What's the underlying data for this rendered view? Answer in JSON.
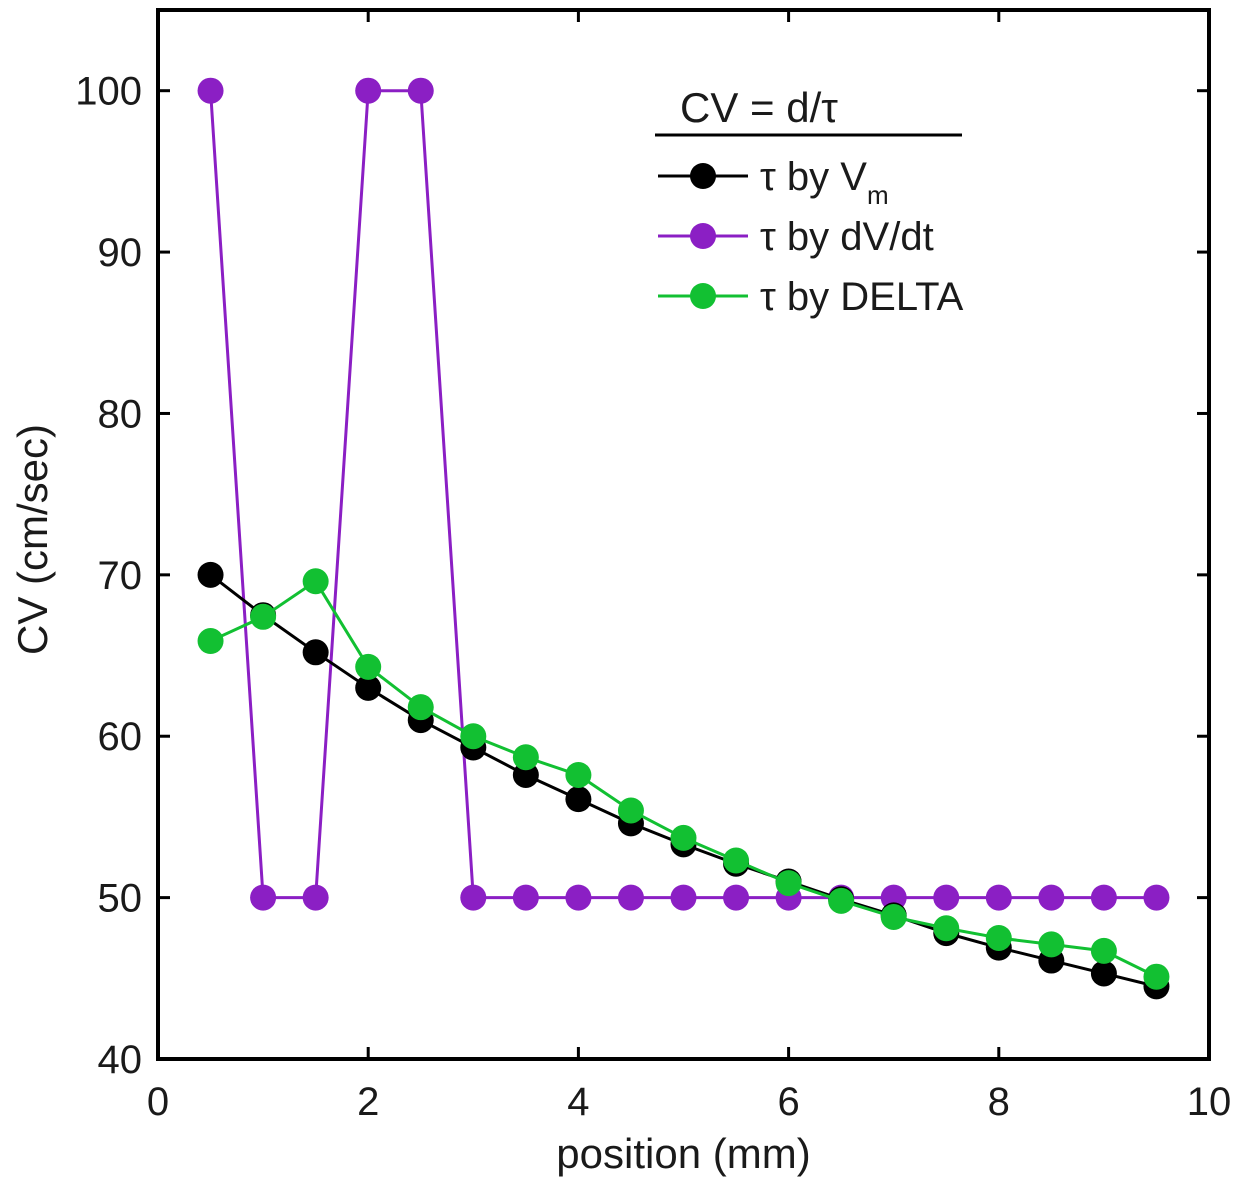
{
  "chart_data": {
    "type": "line",
    "title": "",
    "xlabel": "position (mm)",
    "ylabel": "CV (cm/sec)",
    "xlim": [
      0,
      10
    ],
    "ylim": [
      40,
      105
    ],
    "xticks": [
      0,
      2,
      4,
      6,
      8,
      10
    ],
    "yticks": [
      40,
      50,
      60,
      70,
      80,
      90,
      100
    ],
    "xtick_labels": [
      "0",
      "2",
      "4",
      "6",
      "8",
      "10"
    ],
    "ytick_labels": [
      "40",
      "50",
      "60",
      "70",
      "80",
      "90",
      "100"
    ],
    "grid": false,
    "legend": {
      "title": "CV = d/τ",
      "placement": "top-right",
      "entries": [
        {
          "prefix": "τ by ",
          "main": "V",
          "sub": "m"
        },
        {
          "prefix": "τ by ",
          "main": "dV/dt",
          "sub": ""
        },
        {
          "prefix": "τ by ",
          "main": "DELTA",
          "sub": ""
        }
      ]
    },
    "x": [
      0.5,
      1.0,
      1.5,
      2.0,
      2.5,
      3.0,
      3.5,
      4.0,
      4.5,
      5.0,
      5.5,
      6.0,
      6.5,
      7.0,
      7.5,
      8.0,
      8.5,
      9.0,
      9.5
    ],
    "series": [
      {
        "name": "τ by Vm",
        "color": "#000000",
        "values": [
          70.0,
          67.5,
          65.2,
          63.0,
          61.0,
          59.3,
          57.6,
          56.1,
          54.6,
          53.3,
          52.1,
          51.0,
          49.9,
          48.9,
          47.8,
          46.9,
          46.1,
          45.3,
          44.5
        ]
      },
      {
        "name": "τ by dV/dt",
        "color": "#8b1fc4",
        "values": [
          100.0,
          50.0,
          50.0,
          100.0,
          100.0,
          50.0,
          50.0,
          50.0,
          50.0,
          50.0,
          50.0,
          50.0,
          50.0,
          50.0,
          50.0,
          50.0,
          50.0,
          50.0,
          50.0
        ]
      },
      {
        "name": "τ by DELTA",
        "color": "#12c032",
        "values": [
          65.9,
          67.4,
          69.6,
          64.3,
          61.8,
          60.0,
          58.7,
          57.6,
          55.4,
          53.7,
          52.3,
          50.9,
          49.8,
          48.8,
          48.1,
          47.5,
          47.1,
          46.7,
          45.1
        ]
      }
    ]
  }
}
